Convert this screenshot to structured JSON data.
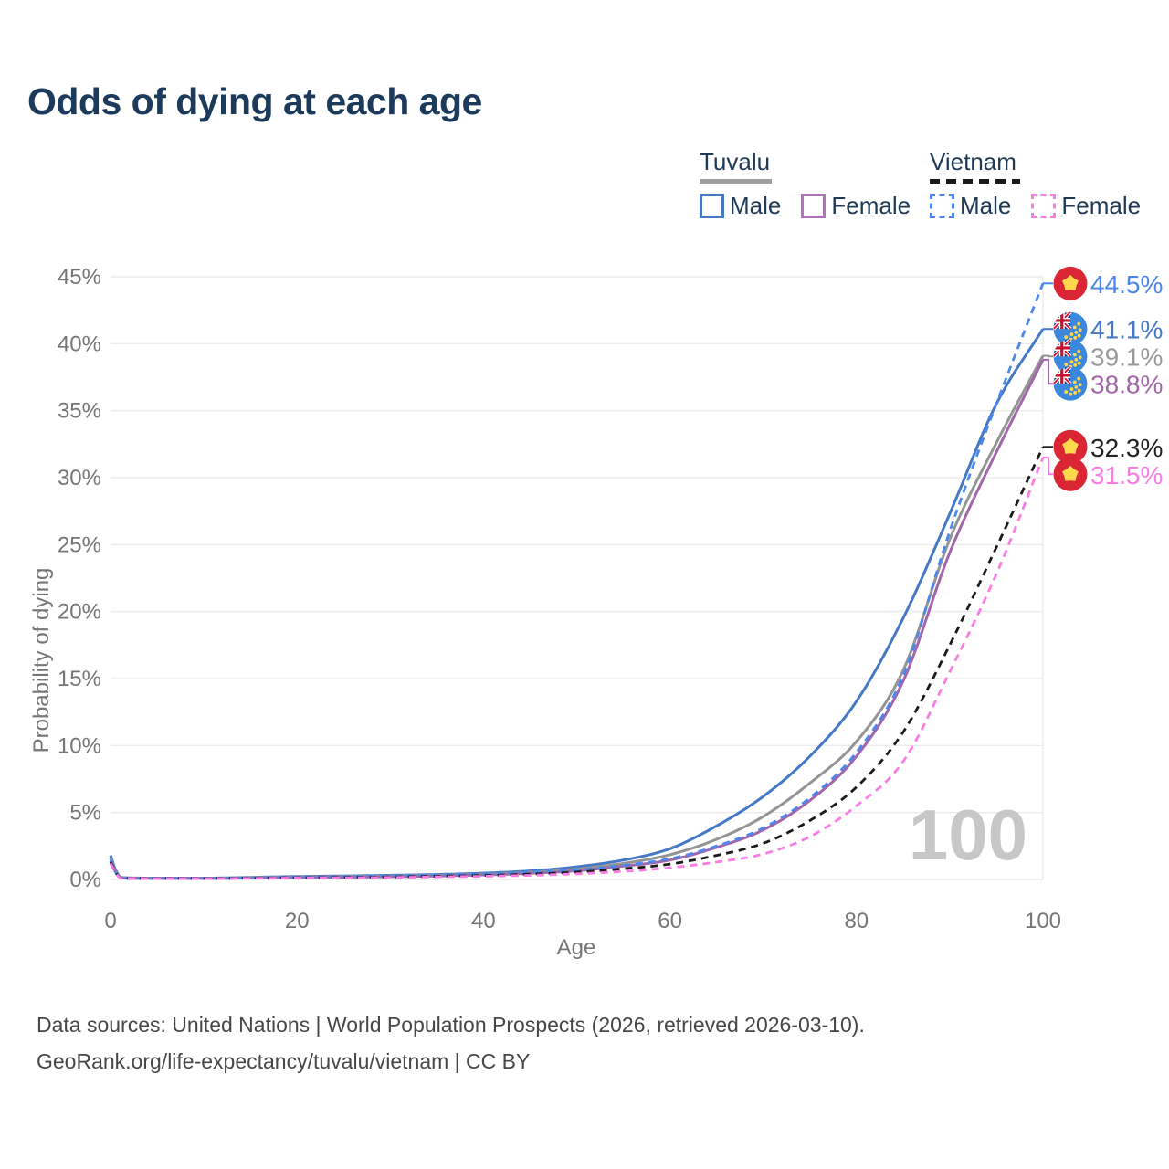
{
  "title": "Odds of dying at each age",
  "legend": {
    "tuvalu": {
      "label": "Tuvalu",
      "male_label": "Male",
      "female_label": "Female"
    },
    "vietnam": {
      "label": "Vietnam",
      "male_label": "Male",
      "female_label": "Female"
    }
  },
  "colors": {
    "title": "#1c3a5c",
    "legend_text": "#203a56",
    "axis_text": "#767676",
    "gridline": "#e8e8e8",
    "watermark": "#c7c7c7",
    "footer_text": "#474747",
    "tuvalu_underline": "#9e9e9e",
    "vietnam_underline": "#1a1a1a",
    "vietnam_flag_red": "#da2535",
    "flag_star_yellow": "#ffd84d",
    "tuvalu_flag_blue": "#3b87de",
    "union_jack_navy": "#1f3d7a",
    "union_jack_red": "#c8102e"
  },
  "chart_data": {
    "type": "line",
    "title": "Odds of dying at each age",
    "xlabel": "Age",
    "ylabel": "Probability of dying",
    "xlim": [
      0,
      100
    ],
    "ylim": [
      0,
      45
    ],
    "x_tick_values": [
      0,
      20,
      40,
      60,
      80,
      100
    ],
    "x_tick_labels": [
      "0",
      "20",
      "40",
      "60",
      "80",
      "100"
    ],
    "y_tick_values": [
      0,
      5,
      10,
      15,
      20,
      25,
      30,
      35,
      40,
      45
    ],
    "y_tick_labels": [
      "0%",
      "5%",
      "10%",
      "15%",
      "20%",
      "25%",
      "30%",
      "35%",
      "40%",
      "45%"
    ],
    "grid": "horizontal",
    "legend_position": "top-right",
    "watermark": "100",
    "ages": [
      0,
      1,
      5,
      10,
      15,
      20,
      25,
      30,
      35,
      40,
      45,
      50,
      55,
      60,
      65,
      70,
      75,
      80,
      85,
      90,
      95,
      100
    ],
    "series": [
      {
        "id": "tuvalu-male",
        "name": "Tuvalu Male",
        "country": "Tuvalu",
        "sex": "Male",
        "line": "solid",
        "color": "#4579c6",
        "flag": "tuvalu",
        "end_label": "41.1%",
        "end_value": 41.1,
        "values": [
          1.8,
          0.15,
          0.1,
          0.1,
          0.16,
          0.22,
          0.26,
          0.31,
          0.37,
          0.47,
          0.64,
          0.95,
          1.45,
          2.3,
          4.0,
          6.2,
          9.2,
          13.3,
          19.5,
          27.3,
          35.5,
          41.1
        ]
      },
      {
        "id": "tuvalu-combined",
        "name": "Tuvalu (both sexes)",
        "country": "Tuvalu",
        "sex": "Combined",
        "line": "solid",
        "color": "#949494",
        "label_color": "#9a9a9a",
        "flag": "tuvalu",
        "end_label": "39.1%",
        "end_value": 39.1,
        "values": [
          1.6,
          0.13,
          0.09,
          0.09,
          0.13,
          0.18,
          0.21,
          0.25,
          0.31,
          0.39,
          0.53,
          0.78,
          1.2,
          1.85,
          3.0,
          4.7,
          7.2,
          10.3,
          15.6,
          25.4,
          32.6,
          39.1
        ]
      },
      {
        "id": "tuvalu-female",
        "name": "Tuvalu Female",
        "country": "Tuvalu",
        "sex": "Female",
        "line": "solid",
        "color": "#a266aa",
        "flag": "tuvalu",
        "end_label": "38.8%",
        "end_value": 38.8,
        "values": [
          1.4,
          0.11,
          0.08,
          0.08,
          0.11,
          0.14,
          0.17,
          0.21,
          0.26,
          0.34,
          0.46,
          0.65,
          1.0,
          1.45,
          2.4,
          3.7,
          5.9,
          9.2,
          14.8,
          24.4,
          31.9,
          38.8
        ]
      },
      {
        "id": "vietnam-male",
        "name": "Vietnam Male",
        "country": "Vietnam",
        "sex": "Male",
        "line": "dashed",
        "color": "#4b87ee",
        "flag": "vietnam",
        "end_label": "44.5%",
        "end_value": 44.5,
        "values": [
          1.5,
          0.12,
          0.08,
          0.08,
          0.12,
          0.17,
          0.21,
          0.26,
          0.32,
          0.4,
          0.53,
          0.73,
          1.05,
          1.55,
          2.5,
          3.85,
          6.1,
          9.5,
          15.2,
          26.0,
          35.5,
          44.5
        ]
      },
      {
        "id": "vietnam-combined",
        "name": "Vietnam (both sexes)",
        "country": "Vietnam",
        "sex": "Combined",
        "line": "dashed",
        "color": "#1b1b1b",
        "label_color": "#222222",
        "flag": "vietnam",
        "end_label": "32.3%",
        "end_value": 32.3,
        "values": [
          1.3,
          0.1,
          0.07,
          0.07,
          0.1,
          0.13,
          0.16,
          0.19,
          0.24,
          0.3,
          0.4,
          0.55,
          0.8,
          1.15,
          1.8,
          2.7,
          4.4,
          6.9,
          11.0,
          17.5,
          24.8,
          32.3
        ]
      },
      {
        "id": "vietnam-female",
        "name": "Vietnam Female",
        "country": "Vietnam",
        "sex": "Female",
        "line": "dashed",
        "color": "#fb7ce3",
        "flag": "vietnam",
        "end_label": "31.5%",
        "end_value": 31.5,
        "values": [
          1.2,
          0.09,
          0.06,
          0.06,
          0.08,
          0.11,
          0.13,
          0.15,
          0.19,
          0.24,
          0.31,
          0.42,
          0.6,
          0.88,
          1.3,
          1.9,
          3.2,
          5.5,
          8.8,
          15.5,
          22.8,
          31.5
        ]
      }
    ]
  },
  "footer": {
    "line1": "Data sources: United Nations | World Population Prospects (2026, retrieved 2026-03-10).",
    "line2": "GeoRank.org/life-expectancy/tuvalu/vietnam | CC BY"
  }
}
